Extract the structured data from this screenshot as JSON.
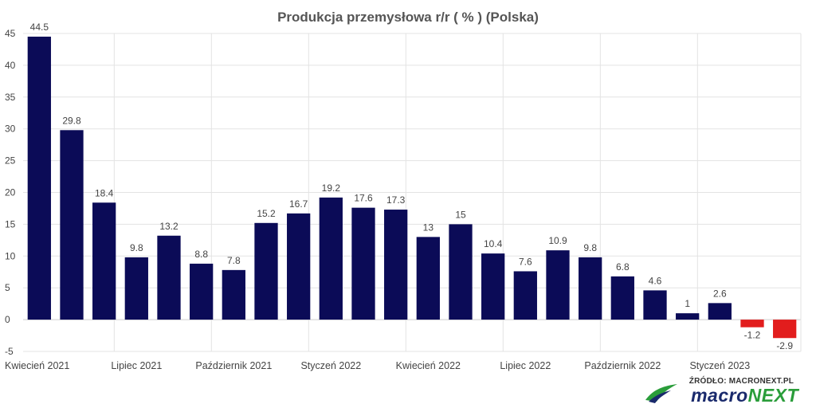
{
  "chart_data": {
    "type": "bar",
    "title": "Produkcja przemysłowa r/r ( % ) (Polska)",
    "categories": [
      "2021-04",
      "2021-05",
      "2021-06",
      "2021-07",
      "2021-08",
      "2021-09",
      "2021-10",
      "2021-11",
      "2021-12",
      "2022-01",
      "2022-02",
      "2022-03",
      "2022-04",
      "2022-05",
      "2022-06",
      "2022-07",
      "2022-08",
      "2022-09",
      "2022-10",
      "2022-11",
      "2022-12",
      "2023-01",
      "2023-02",
      "2023-03"
    ],
    "values": [
      44.5,
      29.8,
      18.4,
      9.8,
      13.2,
      8.8,
      7.8,
      15.2,
      16.7,
      19.2,
      17.6,
      17.3,
      13,
      15,
      10.4,
      7.6,
      10.9,
      9.8,
      6.8,
      4.6,
      1,
      2.6,
      -1.2,
      -2.9
    ],
    "value_labels": [
      "44.5",
      "29.8",
      "18.4",
      "9.8",
      "13.2",
      "8.8",
      "7.8",
      "15.2",
      "16.7",
      "19.2",
      "17.6",
      "17.3",
      "13",
      "15",
      "10.4",
      "7.6",
      "10.9",
      "9.8",
      "6.8",
      "4.6",
      "1",
      "2.6",
      "-1.2",
      "-2.9"
    ],
    "x_tick_labels": [
      {
        "index": 0,
        "label": "Kwiecień 2021"
      },
      {
        "index": 3,
        "label": "Lipiec 2021"
      },
      {
        "index": 6,
        "label": "Październik 2021"
      },
      {
        "index": 9,
        "label": "Styczeń 2022"
      },
      {
        "index": 12,
        "label": "Kwiecień 2022"
      },
      {
        "index": 15,
        "label": "Lipiec 2022"
      },
      {
        "index": 18,
        "label": "Październik 2022"
      },
      {
        "index": 21,
        "label": "Styczeń 2023"
      }
    ],
    "y_ticks": [
      -5,
      0,
      5,
      10,
      15,
      20,
      25,
      30,
      35,
      40,
      45
    ],
    "ylim": [
      -5,
      45
    ],
    "grid": true,
    "xlabel": "",
    "ylabel": "",
    "colors": {
      "positive": "#0b0b57",
      "negative": "#e21d1d"
    }
  },
  "source": {
    "text": "ŹRÓDŁO: MACRONEXT.PL",
    "brand_part1": "macro",
    "brand_part2": "NEXT",
    "brand_colors": {
      "macro": "#1a2a6c",
      "next": "#2a9d3a"
    }
  }
}
